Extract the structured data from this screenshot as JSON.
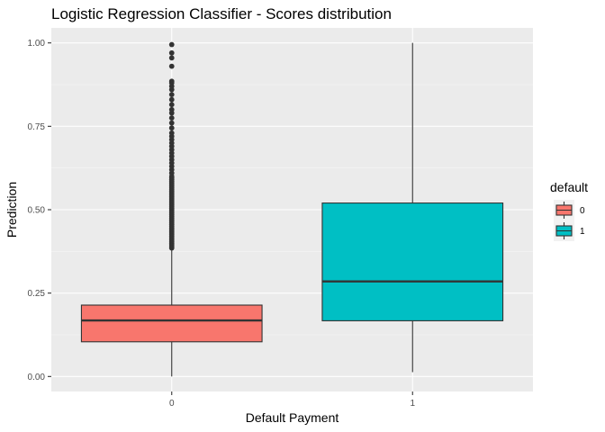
{
  "chart_data": {
    "type": "boxplot",
    "title": "Logistic Regression Classifier - Scores distribution",
    "xlabel": "Default Payment",
    "ylabel": "Prediction",
    "categories": [
      "0",
      "1"
    ],
    "ylim": [
      -0.045,
      1.045
    ],
    "y_ticks": [
      0.0,
      0.25,
      0.5,
      0.75,
      1.0
    ],
    "y_tick_labels": [
      "0.00",
      "0.25",
      "0.50",
      "0.75",
      "1.00"
    ],
    "grid": true,
    "legend": {
      "title": "default",
      "position": "right",
      "entries": [
        {
          "label": "0",
          "color": "#F8766D"
        },
        {
          "label": "1",
          "color": "#00BFC4"
        }
      ]
    },
    "series": [
      {
        "category": "0",
        "color": "#F8766D",
        "min": 0.0,
        "q1": 0.104,
        "median": 0.168,
        "q3": 0.214,
        "max": 0.38,
        "outliers": [
          0.385,
          0.39,
          0.395,
          0.4,
          0.405,
          0.41,
          0.415,
          0.42,
          0.425,
          0.43,
          0.435,
          0.44,
          0.445,
          0.45,
          0.455,
          0.46,
          0.465,
          0.47,
          0.475,
          0.48,
          0.485,
          0.49,
          0.495,
          0.5,
          0.505,
          0.51,
          0.515,
          0.52,
          0.525,
          0.53,
          0.535,
          0.54,
          0.545,
          0.55,
          0.555,
          0.56,
          0.565,
          0.57,
          0.575,
          0.58,
          0.585,
          0.59,
          0.595,
          0.6,
          0.61,
          0.62,
          0.63,
          0.64,
          0.65,
          0.66,
          0.67,
          0.68,
          0.69,
          0.7,
          0.71,
          0.72,
          0.73,
          0.745,
          0.76,
          0.775,
          0.79,
          0.8,
          0.815,
          0.83,
          0.845,
          0.86,
          0.87,
          0.88,
          0.885,
          0.93,
          0.955,
          0.97,
          0.995
        ]
      },
      {
        "category": "1",
        "color": "#00BFC4",
        "min": 0.013,
        "q1": 0.167,
        "median": 0.285,
        "q3": 0.52,
        "max": 1.0,
        "outliers": []
      }
    ]
  }
}
